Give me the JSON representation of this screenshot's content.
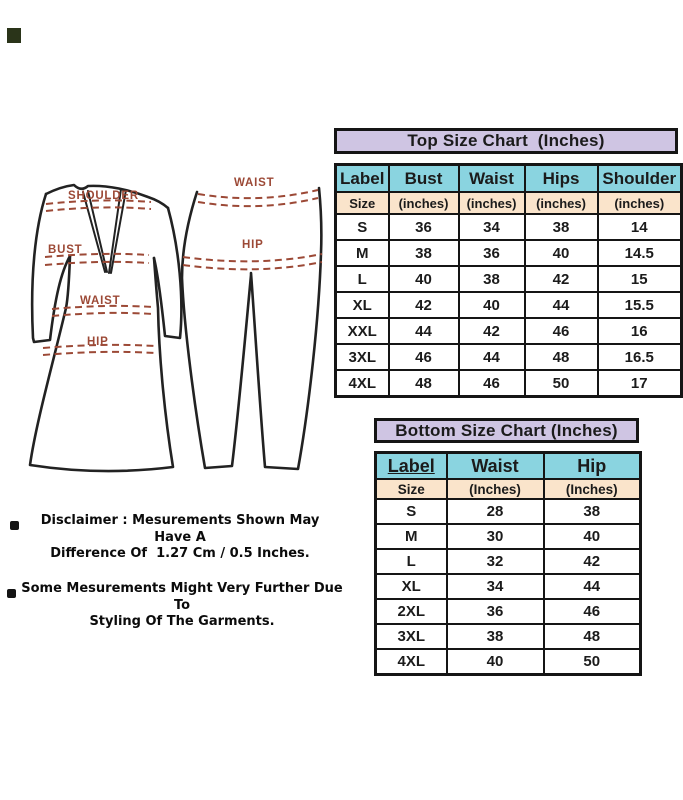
{
  "colors": {
    "lavender": "#cfc5e3",
    "cyan": "#8ad4e0",
    "peach": "#fae4cb",
    "border": "#151515",
    "ink": "#1b1b1b",
    "maroon": "#9c4936",
    "outline": "#222222"
  },
  "top_chart": {
    "title": "Top Size Chart  (Inches)",
    "columns": [
      {
        "label": "Label",
        "sub": "Size"
      },
      {
        "label": "Bust",
        "sub": "(inches)"
      },
      {
        "label": "Waist",
        "sub": "(inches)"
      },
      {
        "label": "Hips",
        "sub": "(inches)"
      },
      {
        "label": "Shoulder",
        "sub": "(inches)"
      }
    ],
    "rows": [
      [
        "S",
        "36",
        "34",
        "38",
        "14"
      ],
      [
        "M",
        "38",
        "36",
        "40",
        "14.5"
      ],
      [
        "L",
        "40",
        "38",
        "42",
        "15"
      ],
      [
        "XL",
        "42",
        "40",
        "44",
        "15.5"
      ],
      [
        "XXL",
        "44",
        "42",
        "46",
        "16"
      ],
      [
        "3XL",
        "46",
        "44",
        "48",
        "16.5"
      ],
      [
        "4XL",
        "48",
        "46",
        "50",
        "17"
      ]
    ]
  },
  "bottom_chart": {
    "title": "Bottom Size Chart (Inches)",
    "columns": [
      {
        "label": "Label",
        "sub": "Size",
        "underline": true
      },
      {
        "label": "Waist",
        "sub": "(Inches)"
      },
      {
        "label": "Hip",
        "sub": "(Inches)"
      }
    ],
    "rows": [
      [
        "S",
        "28",
        "38"
      ],
      [
        "M",
        "30",
        "40"
      ],
      [
        "L",
        "32",
        "42"
      ],
      [
        "XL",
        "34",
        "44"
      ],
      [
        "2XL",
        "36",
        "46"
      ],
      [
        "3XL",
        "38",
        "48"
      ],
      [
        "4XL",
        "40",
        "50"
      ]
    ]
  },
  "diagram": {
    "kurta_labels": {
      "shoulder": "SHOULDER",
      "bust": "BUST",
      "waist": "WAIST",
      "hip": "HIP"
    },
    "pants_labels": {
      "waist": "WAIST",
      "hip": "HIP"
    }
  },
  "disclaimer": {
    "item1": "Disclaimer : Mesurements Shown May Have A\nDifference Of  1.27 Cm / 0.5 Inches.",
    "item2": "Some Mesurements Might Very Further Due To\nStyling Of The Garments."
  }
}
